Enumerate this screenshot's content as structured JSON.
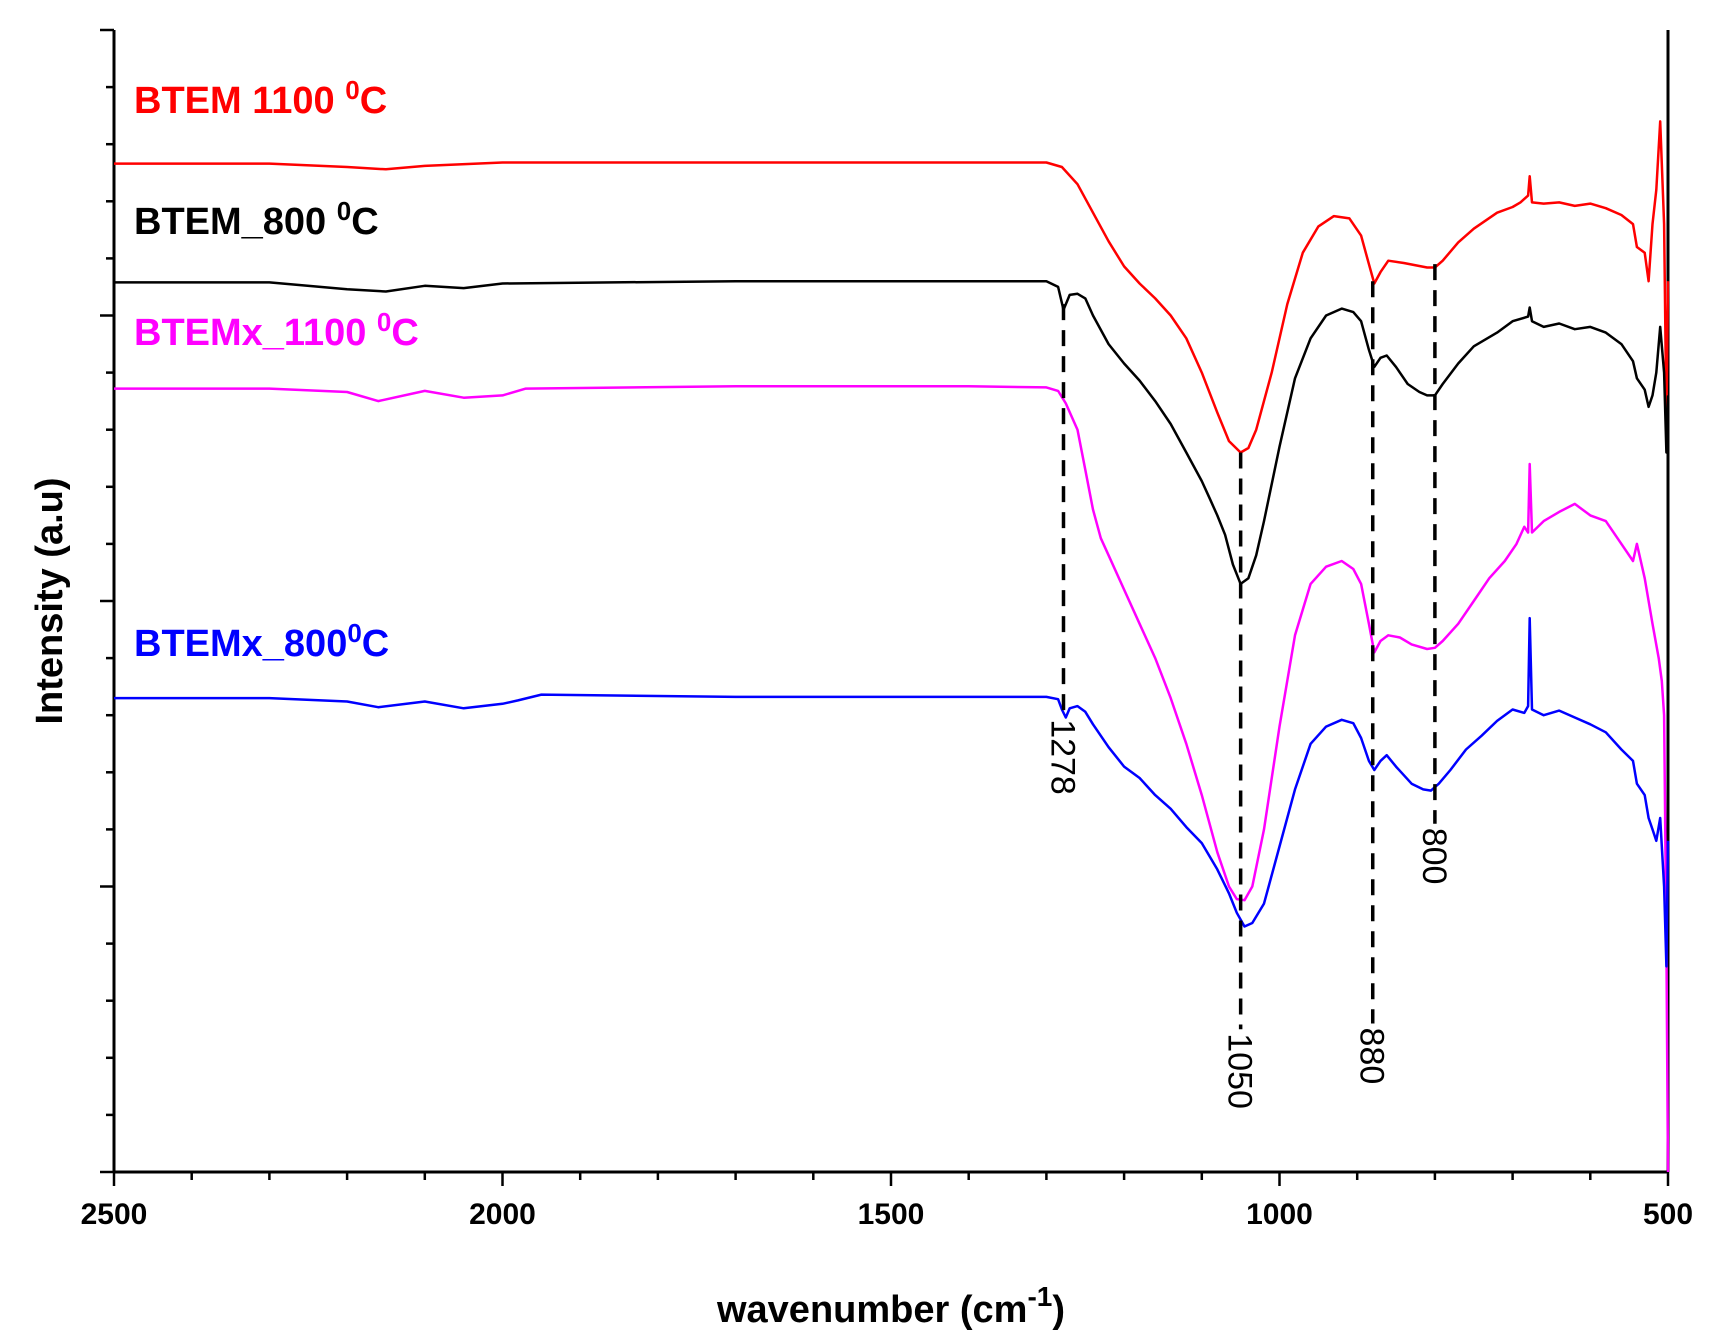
{
  "chart_data": {
    "type": "line",
    "title": "",
    "xlabel": "wavenumber (cm",
    "xlabel_sup": "-1",
    "xlabel_end": ")",
    "ylabel": "Intensity (a.u)",
    "xlim": [
      2500,
      500
    ],
    "x_reversed": true,
    "ylim": [
      0,
      100
    ],
    "x_ticks": [
      2500,
      2000,
      1500,
      1000,
      500
    ],
    "x_tick_labels": [
      "2500",
      "2000",
      "1500",
      "1000",
      "500"
    ],
    "y_tick_labels_shown": false,
    "series": [
      {
        "name": "BTEM 1100 0C",
        "label_main": "BTEM 1100 ",
        "label_sup": "0",
        "label_end": "C",
        "color": "#ff0000",
        "points": [
          [
            2500,
            88.3
          ],
          [
            2300,
            88.3
          ],
          [
            2200,
            88.0
          ],
          [
            2150,
            87.8
          ],
          [
            2100,
            88.1
          ],
          [
            2000,
            88.4
          ],
          [
            1700,
            88.4
          ],
          [
            1400,
            88.4
          ],
          [
            1300,
            88.4
          ],
          [
            1280,
            88.0
          ],
          [
            1260,
            86.5
          ],
          [
            1240,
            84.0
          ],
          [
            1220,
            81.5
          ],
          [
            1200,
            79.3
          ],
          [
            1180,
            77.8
          ],
          [
            1160,
            76.5
          ],
          [
            1140,
            75.0
          ],
          [
            1120,
            73.0
          ],
          [
            1100,
            70.0
          ],
          [
            1080,
            66.5
          ],
          [
            1065,
            64.0
          ],
          [
            1050,
            63.0
          ],
          [
            1040,
            63.4
          ],
          [
            1030,
            65.0
          ],
          [
            1010,
            70.0
          ],
          [
            990,
            76.0
          ],
          [
            970,
            80.5
          ],
          [
            950,
            82.8
          ],
          [
            930,
            83.7
          ],
          [
            910,
            83.5
          ],
          [
            895,
            82.0
          ],
          [
            885,
            79.5
          ],
          [
            878,
            77.8
          ],
          [
            870,
            78.8
          ],
          [
            860,
            79.8
          ],
          [
            840,
            79.6
          ],
          [
            810,
            79.2
          ],
          [
            800,
            79.2
          ],
          [
            790,
            79.8
          ],
          [
            770,
            81.4
          ],
          [
            750,
            82.6
          ],
          [
            720,
            84.0
          ],
          [
            700,
            84.5
          ],
          [
            690,
            84.9
          ],
          [
            680,
            85.5
          ],
          [
            678,
            87.2
          ],
          [
            675,
            84.9
          ],
          [
            660,
            84.8
          ],
          [
            640,
            84.9
          ],
          [
            620,
            84.6
          ],
          [
            600,
            84.8
          ],
          [
            580,
            84.4
          ],
          [
            560,
            83.8
          ],
          [
            545,
            83.0
          ],
          [
            540,
            81.0
          ],
          [
            530,
            80.5
          ],
          [
            525,
            78.0
          ],
          [
            520,
            83.0
          ],
          [
            515,
            86.0
          ],
          [
            510,
            92.0
          ],
          [
            505,
            83.0
          ],
          [
            502,
            66.0
          ],
          [
            500,
            78.0
          ]
        ]
      },
      {
        "name": "BTEM_800 0C",
        "label_main": "BTEM_800 ",
        "label_sup": "0",
        "label_end": "C",
        "color": "#000000",
        "points": [
          [
            2500,
            77.9
          ],
          [
            2300,
            77.9
          ],
          [
            2200,
            77.3
          ],
          [
            2150,
            77.1
          ],
          [
            2100,
            77.6
          ],
          [
            2050,
            77.4
          ],
          [
            2000,
            77.8
          ],
          [
            1700,
            78.0
          ],
          [
            1400,
            78.0
          ],
          [
            1300,
            78.0
          ],
          [
            1285,
            77.5
          ],
          [
            1278,
            75.5
          ],
          [
            1270,
            76.8
          ],
          [
            1260,
            76.9
          ],
          [
            1250,
            76.5
          ],
          [
            1240,
            75.0
          ],
          [
            1220,
            72.5
          ],
          [
            1200,
            70.8
          ],
          [
            1180,
            69.3
          ],
          [
            1160,
            67.5
          ],
          [
            1140,
            65.5
          ],
          [
            1120,
            63.0
          ],
          [
            1100,
            60.5
          ],
          [
            1090,
            59.0
          ],
          [
            1080,
            57.5
          ],
          [
            1070,
            55.8
          ],
          [
            1060,
            53.2
          ],
          [
            1050,
            51.5
          ],
          [
            1040,
            52.0
          ],
          [
            1030,
            54.0
          ],
          [
            1020,
            57.0
          ],
          [
            1000,
            63.5
          ],
          [
            980,
            69.5
          ],
          [
            960,
            73.0
          ],
          [
            940,
            75.0
          ],
          [
            920,
            75.6
          ],
          [
            905,
            75.3
          ],
          [
            895,
            74.5
          ],
          [
            885,
            72.0
          ],
          [
            878,
            70.5
          ],
          [
            870,
            71.3
          ],
          [
            862,
            71.5
          ],
          [
            850,
            70.5
          ],
          [
            835,
            69.0
          ],
          [
            820,
            68.3
          ],
          [
            810,
            68.0
          ],
          [
            800,
            68.0
          ],
          [
            790,
            69.0
          ],
          [
            770,
            70.8
          ],
          [
            750,
            72.3
          ],
          [
            720,
            73.5
          ],
          [
            700,
            74.5
          ],
          [
            680,
            74.9
          ],
          [
            678,
            75.7
          ],
          [
            675,
            74.5
          ],
          [
            660,
            74.0
          ],
          [
            640,
            74.3
          ],
          [
            620,
            73.8
          ],
          [
            600,
            74.0
          ],
          [
            580,
            73.5
          ],
          [
            560,
            72.5
          ],
          [
            545,
            71.0
          ],
          [
            540,
            69.5
          ],
          [
            530,
            68.5
          ],
          [
            525,
            67.0
          ],
          [
            520,
            68.0
          ],
          [
            515,
            70.0
          ],
          [
            510,
            74.0
          ],
          [
            505,
            70.0
          ],
          [
            502,
            63.0
          ],
          [
            500,
            68.0
          ]
        ]
      },
      {
        "name": "BTEMx_1100 0C",
        "label_main": "BTEMx_1100 ",
        "label_sup": "0",
        "label_end": "C",
        "color": "#ff00ff",
        "points": [
          [
            2500,
            68.6
          ],
          [
            2300,
            68.6
          ],
          [
            2200,
            68.3
          ],
          [
            2160,
            67.5
          ],
          [
            2100,
            68.4
          ],
          [
            2050,
            67.8
          ],
          [
            2000,
            68.0
          ],
          [
            1970,
            68.6
          ],
          [
            1700,
            68.8
          ],
          [
            1400,
            68.8
          ],
          [
            1300,
            68.7
          ],
          [
            1285,
            68.4
          ],
          [
            1275,
            67.3
          ],
          [
            1260,
            65.0
          ],
          [
            1250,
            61.5
          ],
          [
            1240,
            58.0
          ],
          [
            1230,
            55.5
          ],
          [
            1220,
            54.0
          ],
          [
            1200,
            51.0
          ],
          [
            1180,
            48.0
          ],
          [
            1160,
            45.0
          ],
          [
            1140,
            41.5
          ],
          [
            1120,
            37.5
          ],
          [
            1100,
            33.0
          ],
          [
            1080,
            28.0
          ],
          [
            1065,
            25.0
          ],
          [
            1055,
            23.9
          ],
          [
            1045,
            23.8
          ],
          [
            1035,
            25.0
          ],
          [
            1020,
            30.0
          ],
          [
            1000,
            39.0
          ],
          [
            980,
            47.0
          ],
          [
            960,
            51.5
          ],
          [
            940,
            53.0
          ],
          [
            920,
            53.5
          ],
          [
            905,
            52.8
          ],
          [
            895,
            51.5
          ],
          [
            885,
            48.0
          ],
          [
            878,
            45.5
          ],
          [
            870,
            46.5
          ],
          [
            860,
            47.0
          ],
          [
            845,
            46.8
          ],
          [
            830,
            46.2
          ],
          [
            810,
            45.8
          ],
          [
            800,
            45.9
          ],
          [
            790,
            46.5
          ],
          [
            770,
            48.0
          ],
          [
            750,
            50.0
          ],
          [
            730,
            52.0
          ],
          [
            710,
            53.5
          ],
          [
            695,
            55.0
          ],
          [
            685,
            56.5
          ],
          [
            680,
            56.0
          ],
          [
            678,
            62.0
          ],
          [
            675,
            56.0
          ],
          [
            660,
            57.0
          ],
          [
            640,
            57.8
          ],
          [
            620,
            58.5
          ],
          [
            600,
            57.5
          ],
          [
            580,
            57.0
          ],
          [
            560,
            55.0
          ],
          [
            545,
            53.5
          ],
          [
            540,
            55.0
          ],
          [
            530,
            52.0
          ],
          [
            520,
            48.0
          ],
          [
            512,
            45.0
          ],
          [
            508,
            43.0
          ],
          [
            505,
            40.0
          ],
          [
            502,
            20.0
          ],
          [
            500,
            0.0
          ]
        ]
      },
      {
        "name": "BTEMx_800 0C",
        "label_main": "BTEMx_800",
        "label_sup": "0",
        "label_end": "C",
        "color": "#0000ff",
        "points": [
          [
            2500,
            41.5
          ],
          [
            2300,
            41.5
          ],
          [
            2200,
            41.2
          ],
          [
            2160,
            40.7
          ],
          [
            2100,
            41.2
          ],
          [
            2050,
            40.6
          ],
          [
            2000,
            41.0
          ],
          [
            1980,
            41.3
          ],
          [
            1950,
            41.8
          ],
          [
            1700,
            41.6
          ],
          [
            1400,
            41.6
          ],
          [
            1300,
            41.6
          ],
          [
            1285,
            41.4
          ],
          [
            1280,
            40.5
          ],
          [
            1275,
            39.8
          ],
          [
            1270,
            40.6
          ],
          [
            1260,
            40.8
          ],
          [
            1250,
            40.3
          ],
          [
            1240,
            39.2
          ],
          [
            1220,
            37.2
          ],
          [
            1200,
            35.5
          ],
          [
            1180,
            34.5
          ],
          [
            1160,
            33.0
          ],
          [
            1140,
            31.8
          ],
          [
            1120,
            30.2
          ],
          [
            1100,
            28.8
          ],
          [
            1080,
            26.5
          ],
          [
            1065,
            24.4
          ],
          [
            1055,
            22.7
          ],
          [
            1045,
            21.5
          ],
          [
            1035,
            21.8
          ],
          [
            1020,
            23.5
          ],
          [
            1000,
            28.5
          ],
          [
            980,
            33.5
          ],
          [
            960,
            37.5
          ],
          [
            940,
            39.0
          ],
          [
            920,
            39.6
          ],
          [
            905,
            39.3
          ],
          [
            895,
            38.0
          ],
          [
            885,
            36.0
          ],
          [
            878,
            35.2
          ],
          [
            870,
            36.0
          ],
          [
            862,
            36.5
          ],
          [
            850,
            35.5
          ],
          [
            830,
            34.0
          ],
          [
            815,
            33.5
          ],
          [
            805,
            33.4
          ],
          [
            795,
            34.0
          ],
          [
            780,
            35.2
          ],
          [
            760,
            37.0
          ],
          [
            740,
            38.2
          ],
          [
            720,
            39.5
          ],
          [
            700,
            40.5
          ],
          [
            685,
            40.2
          ],
          [
            680,
            40.8
          ],
          [
            678,
            48.5
          ],
          [
            675,
            40.5
          ],
          [
            660,
            40.0
          ],
          [
            640,
            40.4
          ],
          [
            620,
            39.8
          ],
          [
            600,
            39.2
          ],
          [
            580,
            38.5
          ],
          [
            560,
            37.0
          ],
          [
            545,
            36.0
          ],
          [
            540,
            34.0
          ],
          [
            530,
            33.0
          ],
          [
            525,
            31.0
          ],
          [
            520,
            30.0
          ],
          [
            515,
            29.0
          ],
          [
            510,
            31.0
          ],
          [
            505,
            25.0
          ],
          [
            502,
            18.0
          ],
          [
            500,
            29.0
          ]
        ]
      }
    ],
    "peak_markers": [
      {
        "x": 1278,
        "label": "1278",
        "y_top": 76.0,
        "y_bottom": 40.0
      },
      {
        "x": 1050,
        "label": "1050",
        "y_top": 63.0,
        "y_bottom": 12.5
      },
      {
        "x": 880,
        "label": "880",
        "y_top": 78.0,
        "y_bottom": 13.0
      },
      {
        "x": 800,
        "label": "800",
        "y_top": 79.5,
        "y_bottom": 30.5
      }
    ]
  }
}
